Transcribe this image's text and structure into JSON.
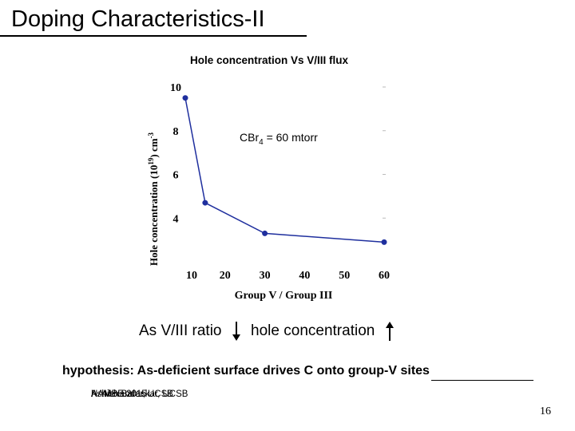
{
  "slide": {
    "title": "Doping Characteristics-II",
    "ratio_text": "As V/III ratio",
    "hole_text": "hole concentration",
    "hypothesis": "hypothesis: As-deficient surface drives C onto group-V sites",
    "footer_1": "NAMBE 2015",
    "footer_2": "A. Alexander, UCSB",
    "footer_3": "Ashish Baraskar, UCSB",
    "page_number": "16"
  },
  "chart_data": {
    "type": "line",
    "title": "Hole concentration Vs V/III flux",
    "xlabel": "Group V / Group III",
    "ylabel_main": "Hole concentration (10",
    "ylabel_exp": "19",
    "ylabel_unit": ") cm",
    "ylabel_unit_exp": "-3",
    "categories": [
      "10",
      "20",
      "30",
      "40",
      "50",
      "60"
    ],
    "x_scale": "categorical",
    "y_ticks": [
      4,
      6,
      8,
      10
    ],
    "ylim": [
      2,
      10
    ],
    "series": [
      {
        "x": [
          10,
          15,
          30,
          60
        ],
        "y": [
          9.5,
          4.7,
          3.3,
          2.9
        ],
        "color": "#1f2f9e"
      }
    ],
    "annotation_main": "CBr",
    "annotation_sub": "4",
    "annotation_rest": " = 60 mtorr",
    "grid": false
  }
}
